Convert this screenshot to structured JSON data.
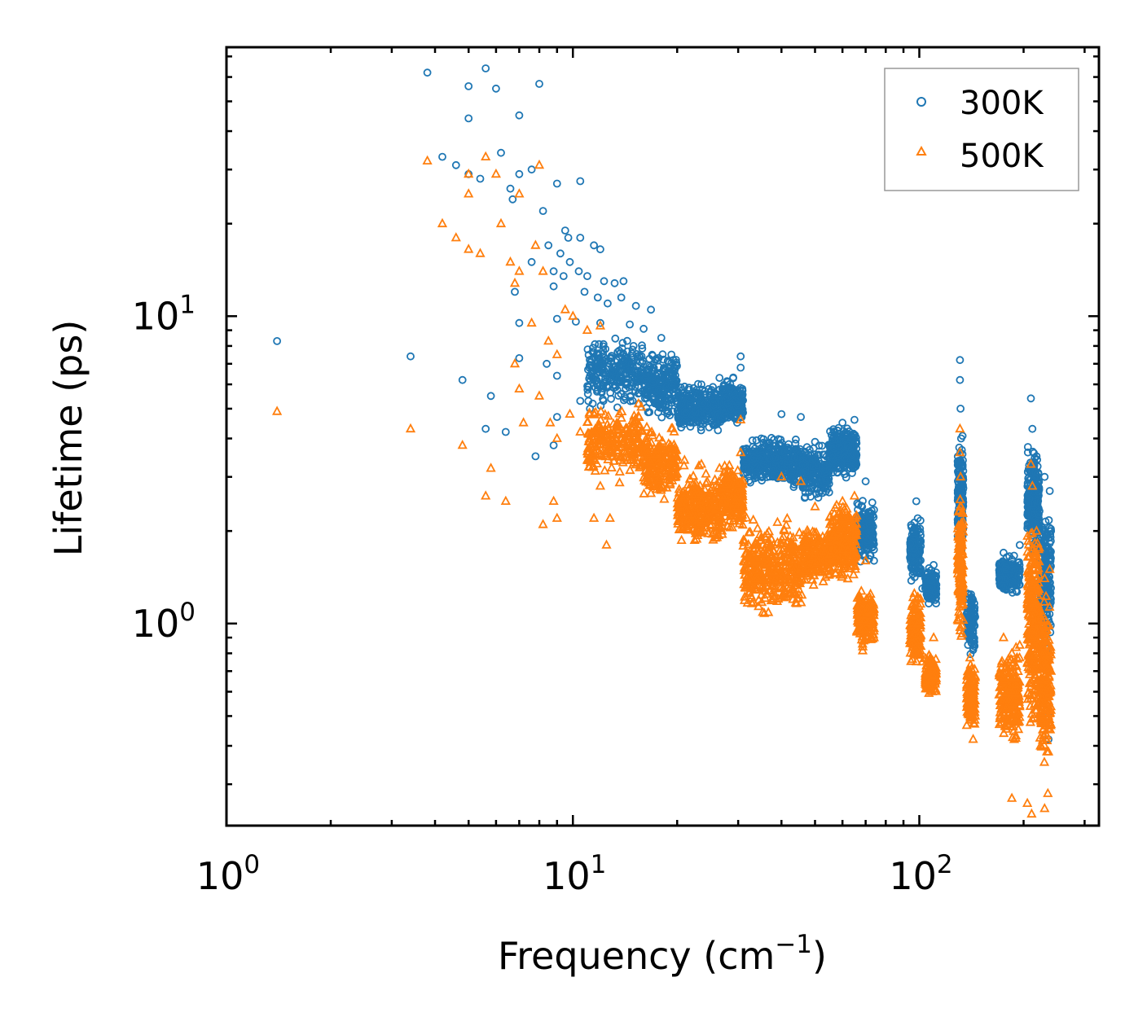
{
  "chart_data": {
    "type": "scatter",
    "title": "",
    "xlabel": "Frequency (cm",
    "xlabel_sup": "−1",
    "xlabel_end": ")",
    "ylabel": "Lifetime (ps)",
    "xscale": "log",
    "yscale": "log",
    "xlim": [
      1,
      330
    ],
    "ylim": [
      0.22,
      75
    ],
    "x_ticks": [
      {
        "base": "10",
        "exp": "0",
        "value": 1
      },
      {
        "base": "10",
        "exp": "1",
        "value": 10
      },
      {
        "base": "10",
        "exp": "2",
        "value": 100
      }
    ],
    "y_ticks": [
      {
        "base": "10",
        "exp": "0",
        "value": 1
      },
      {
        "base": "10",
        "exp": "1",
        "value": 10
      }
    ],
    "legend_position": "top-right",
    "series": [
      {
        "name": "300K",
        "color": "#1f77b4",
        "marker": "circle",
        "points": [
          [
            1.4,
            8.3
          ],
          [
            3.4,
            7.4
          ],
          [
            4.8,
            6.2
          ],
          [
            5.8,
            5.5
          ],
          [
            5.6,
            4.3
          ],
          [
            6.4,
            4.2
          ],
          [
            3.8,
            62
          ],
          [
            5.6,
            64
          ],
          [
            5.0,
            56
          ],
          [
            5.0,
            44
          ],
          [
            6.0,
            55
          ],
          [
            7.0,
            45
          ],
          [
            8.0,
            57
          ],
          [
            6.2,
            34
          ],
          [
            4.2,
            33
          ],
          [
            4.6,
            31
          ],
          [
            5.0,
            29
          ],
          [
            5.4,
            28
          ],
          [
            6.6,
            26
          ],
          [
            6.7,
            24
          ],
          [
            7.0,
            29
          ],
          [
            7.6,
            30
          ],
          [
            9.0,
            27
          ],
          [
            10.5,
            27.5
          ],
          [
            8.2,
            22
          ],
          [
            9.5,
            19
          ],
          [
            9.7,
            18
          ],
          [
            10.5,
            18
          ],
          [
            11.5,
            17
          ],
          [
            12.0,
            16.5
          ],
          [
            7.6,
            15
          ],
          [
            8.5,
            17
          ],
          [
            9.2,
            16
          ],
          [
            9.8,
            15
          ],
          [
            10.4,
            14
          ],
          [
            8.8,
            14
          ],
          [
            9.4,
            13.5
          ],
          [
            11.0,
            13.5
          ],
          [
            12.3,
            13
          ],
          [
            13.2,
            12.8
          ],
          [
            14.0,
            13
          ],
          [
            6.8,
            12
          ],
          [
            8.8,
            12.5
          ],
          [
            10.8,
            12
          ],
          [
            11.8,
            11.5
          ],
          [
            12.6,
            11
          ],
          [
            13.8,
            11.5
          ],
          [
            15.2,
            10.8
          ],
          [
            16.8,
            10.5
          ],
          [
            7.0,
            9.5
          ],
          [
            9.0,
            9.8
          ],
          [
            10.2,
            9.6
          ],
          [
            12.0,
            9.5
          ],
          [
            14.6,
            9.4
          ],
          [
            16.0,
            9.1
          ],
          [
            18.0,
            8.5
          ],
          [
            19.5,
            7.2
          ],
          [
            7.0,
            7.3
          ],
          [
            8.4,
            7.0
          ],
          [
            9.0,
            6.4
          ],
          [
            10.5,
            5.3
          ],
          [
            11.2,
            5.0
          ],
          [
            9.0,
            4.7
          ],
          [
            7.8,
            3.5
          ],
          [
            8.8,
            3.8
          ],
          [
            30.5,
            7.4
          ],
          [
            30.5,
            6.8
          ],
          [
            26.5,
            6.3
          ],
          [
            23.5,
            6.0
          ],
          [
            21.0,
            5.9
          ],
          [
            40.0,
            4.8
          ],
          [
            45.5,
            4.7
          ],
          [
            35.0,
            4.0
          ],
          [
            50.0,
            3.9
          ],
          [
            25.0,
            5.5
          ],
          [
            28.0,
            5.2
          ],
          [
            55.0,
            3.6
          ],
          [
            60.0,
            4.5
          ],
          [
            65.0,
            4.6
          ],
          [
            62.0,
            3.3
          ],
          [
            70.0,
            2.9
          ],
          [
            74.0,
            1.6
          ],
          [
            72.0,
            2.0
          ],
          [
            98.0,
            2.5
          ],
          [
            99.0,
            2.2
          ],
          [
            96.0,
            1.5
          ],
          [
            102.0,
            1.3
          ],
          [
            110.0,
            1.55
          ],
          [
            109.0,
            1.2
          ],
          [
            131.0,
            7.2
          ],
          [
            131.0,
            6.2
          ],
          [
            131.5,
            5.0
          ],
          [
            132.0,
            4.0
          ],
          [
            133.0,
            3.0
          ],
          [
            140.0,
            1.1
          ],
          [
            143.0,
            0.82
          ],
          [
            175.0,
            1.7
          ],
          [
            185.0,
            1.5
          ],
          [
            195.0,
            1.8
          ],
          [
            210.0,
            5.4
          ],
          [
            212.0,
            4.3
          ],
          [
            218.0,
            3.5
          ],
          [
            230.0,
            3.0
          ],
          [
            238.0,
            2.7
          ],
          [
            240.0,
            2.0
          ],
          [
            236.0,
            1.3
          ],
          [
            235.0,
            0.5
          ],
          [
            236.0,
            0.42
          ]
        ],
        "bands": [
          {
            "x0": 11,
            "x1": 16,
            "y0": 4.8,
            "y1": 9.0,
            "n": 260
          },
          {
            "x0": 16,
            "x1": 20,
            "y0": 4.5,
            "y1": 8.0,
            "n": 220
          },
          {
            "x0": 20,
            "x1": 27,
            "y0": 4.0,
            "y1": 6.2,
            "n": 300
          },
          {
            "x0": 27,
            "x1": 31,
            "y0": 4.2,
            "y1": 6.5,
            "n": 180
          },
          {
            "x0": 31,
            "x1": 46,
            "y0": 2.7,
            "y1": 4.2,
            "n": 380
          },
          {
            "x0": 46,
            "x1": 55,
            "y0": 2.4,
            "y1": 4.0,
            "n": 200
          },
          {
            "x0": 55,
            "x1": 66,
            "y0": 2.9,
            "y1": 4.6,
            "n": 280
          },
          {
            "x0": 66,
            "x1": 74,
            "y0": 1.5,
            "y1": 2.6,
            "n": 180
          },
          {
            "x0": 94,
            "x1": 101,
            "y0": 1.3,
            "y1": 2.3,
            "n": 140
          },
          {
            "x0": 104,
            "x1": 112,
            "y0": 1.1,
            "y1": 1.6,
            "n": 120
          },
          {
            "x0": 129,
            "x1": 134,
            "y0": 1.6,
            "y1": 4.5,
            "n": 140
          },
          {
            "x0": 137,
            "x1": 145,
            "y0": 0.75,
            "y1": 1.4,
            "n": 120
          },
          {
            "x0": 170,
            "x1": 195,
            "y0": 1.2,
            "y1": 1.7,
            "n": 220
          },
          {
            "x0": 205,
            "x1": 222,
            "y0": 1.6,
            "y1": 4.0,
            "n": 260
          },
          {
            "x0": 222,
            "x1": 240,
            "y0": 0.8,
            "y1": 2.5,
            "n": 220
          }
        ]
      },
      {
        "name": "500K",
        "color": "#ff7f0e",
        "marker": "triangle",
        "points": [
          [
            1.4,
            4.9
          ],
          [
            3.4,
            4.3
          ],
          [
            4.8,
            3.8
          ],
          [
            5.8,
            3.2
          ],
          [
            5.6,
            2.6
          ],
          [
            6.4,
            2.5
          ],
          [
            3.8,
            32
          ],
          [
            5.6,
            33
          ],
          [
            5.0,
            29
          ],
          [
            5.0,
            25
          ],
          [
            6.0,
            29
          ],
          [
            7.0,
            25
          ],
          [
            8.0,
            31
          ],
          [
            6.2,
            20
          ],
          [
            4.2,
            20
          ],
          [
            4.6,
            18
          ],
          [
            5.0,
            16.5
          ],
          [
            5.4,
            16
          ],
          [
            6.6,
            15
          ],
          [
            7.0,
            14
          ],
          [
            7.8,
            17
          ],
          [
            8.2,
            14
          ],
          [
            6.8,
            12.8
          ],
          [
            9.5,
            10.5
          ],
          [
            10.0,
            10
          ],
          [
            11.0,
            9.0
          ],
          [
            12.0,
            9.3
          ],
          [
            7.6,
            9.5
          ],
          [
            8.5,
            8.3
          ],
          [
            9.0,
            7.5
          ],
          [
            6.8,
            7.0
          ],
          [
            7.0,
            5.8
          ],
          [
            8.0,
            5.5
          ],
          [
            8.6,
            4.5
          ],
          [
            9.0,
            4.0
          ],
          [
            9.8,
            4.8
          ],
          [
            10.5,
            4.2
          ],
          [
            7.2,
            4.5
          ],
          [
            11.0,
            3.4
          ],
          [
            12.0,
            2.8
          ],
          [
            12.8,
            2.2
          ],
          [
            9.0,
            2.2
          ],
          [
            8.2,
            2.1
          ],
          [
            11.5,
            2.2
          ],
          [
            12.5,
            1.8
          ],
          [
            8.8,
            2.5
          ],
          [
            30.5,
            4.6
          ],
          [
            30.5,
            3.6
          ],
          [
            26.5,
            3.2
          ],
          [
            23.5,
            3.3
          ],
          [
            21.0,
            3.4
          ],
          [
            40.0,
            3.0
          ],
          [
            45.5,
            2.9
          ],
          [
            50.0,
            2.4
          ],
          [
            60.0,
            2.5
          ],
          [
            65.0,
            2.6
          ],
          [
            70.0,
            1.6
          ],
          [
            74.0,
            0.9
          ],
          [
            73.0,
            1.0
          ],
          [
            98.0,
            1.2
          ],
          [
            99.0,
            1.0
          ],
          [
            96.0,
            0.8
          ],
          [
            102.0,
            0.75
          ],
          [
            110.0,
            0.9
          ],
          [
            109.0,
            0.6
          ],
          [
            131.0,
            4.3
          ],
          [
            131.0,
            3.6
          ],
          [
            131.5,
            3.0
          ],
          [
            132.0,
            2.4
          ],
          [
            133.0,
            1.8
          ],
          [
            140.0,
            0.65
          ],
          [
            143.0,
            0.42
          ],
          [
            175.0,
            0.9
          ],
          [
            185.0,
            0.8
          ],
          [
            195.0,
            0.85
          ],
          [
            210.0,
            3.3
          ],
          [
            212.0,
            2.8
          ],
          [
            218.0,
            2.0
          ],
          [
            230.0,
            1.4
          ],
          [
            238.0,
            1.5
          ],
          [
            240.0,
            0.7
          ],
          [
            236.0,
            0.5
          ],
          [
            235.0,
            0.28
          ],
          [
            205.0,
            0.26
          ],
          [
            185.0,
            0.27
          ],
          [
            211.0,
            0.24
          ],
          [
            230.0,
            0.25
          ]
        ],
        "bands": [
          {
            "x0": 11,
            "x1": 16,
            "y0": 2.8,
            "y1": 5.4,
            "n": 240
          },
          {
            "x0": 16,
            "x1": 20,
            "y0": 2.4,
            "y1": 4.6,
            "n": 200
          },
          {
            "x0": 20,
            "x1": 27,
            "y0": 1.7,
            "y1": 3.3,
            "n": 300
          },
          {
            "x0": 27,
            "x1": 31,
            "y0": 1.9,
            "y1": 3.6,
            "n": 180
          },
          {
            "x0": 31,
            "x1": 46,
            "y0": 1.0,
            "y1": 2.3,
            "n": 380
          },
          {
            "x0": 46,
            "x1": 55,
            "y0": 1.3,
            "y1": 2.1,
            "n": 200
          },
          {
            "x0": 55,
            "x1": 66,
            "y0": 1.3,
            "y1": 2.6,
            "n": 280
          },
          {
            "x0": 66,
            "x1": 74,
            "y0": 0.8,
            "y1": 1.4,
            "n": 180
          },
          {
            "x0": 94,
            "x1": 101,
            "y0": 0.7,
            "y1": 1.3,
            "n": 140
          },
          {
            "x0": 104,
            "x1": 112,
            "y0": 0.55,
            "y1": 0.85,
            "n": 120
          },
          {
            "x0": 129,
            "x1": 134,
            "y0": 0.8,
            "y1": 3.0,
            "n": 140
          },
          {
            "x0": 137,
            "x1": 145,
            "y0": 0.42,
            "y1": 0.8,
            "n": 120
          },
          {
            "x0": 170,
            "x1": 195,
            "y0": 0.38,
            "y1": 0.9,
            "n": 220
          },
          {
            "x0": 205,
            "x1": 222,
            "y0": 0.4,
            "y1": 2.6,
            "n": 260
          },
          {
            "x0": 222,
            "x1": 240,
            "y0": 0.3,
            "y1": 1.4,
            "n": 220
          }
        ]
      }
    ]
  }
}
